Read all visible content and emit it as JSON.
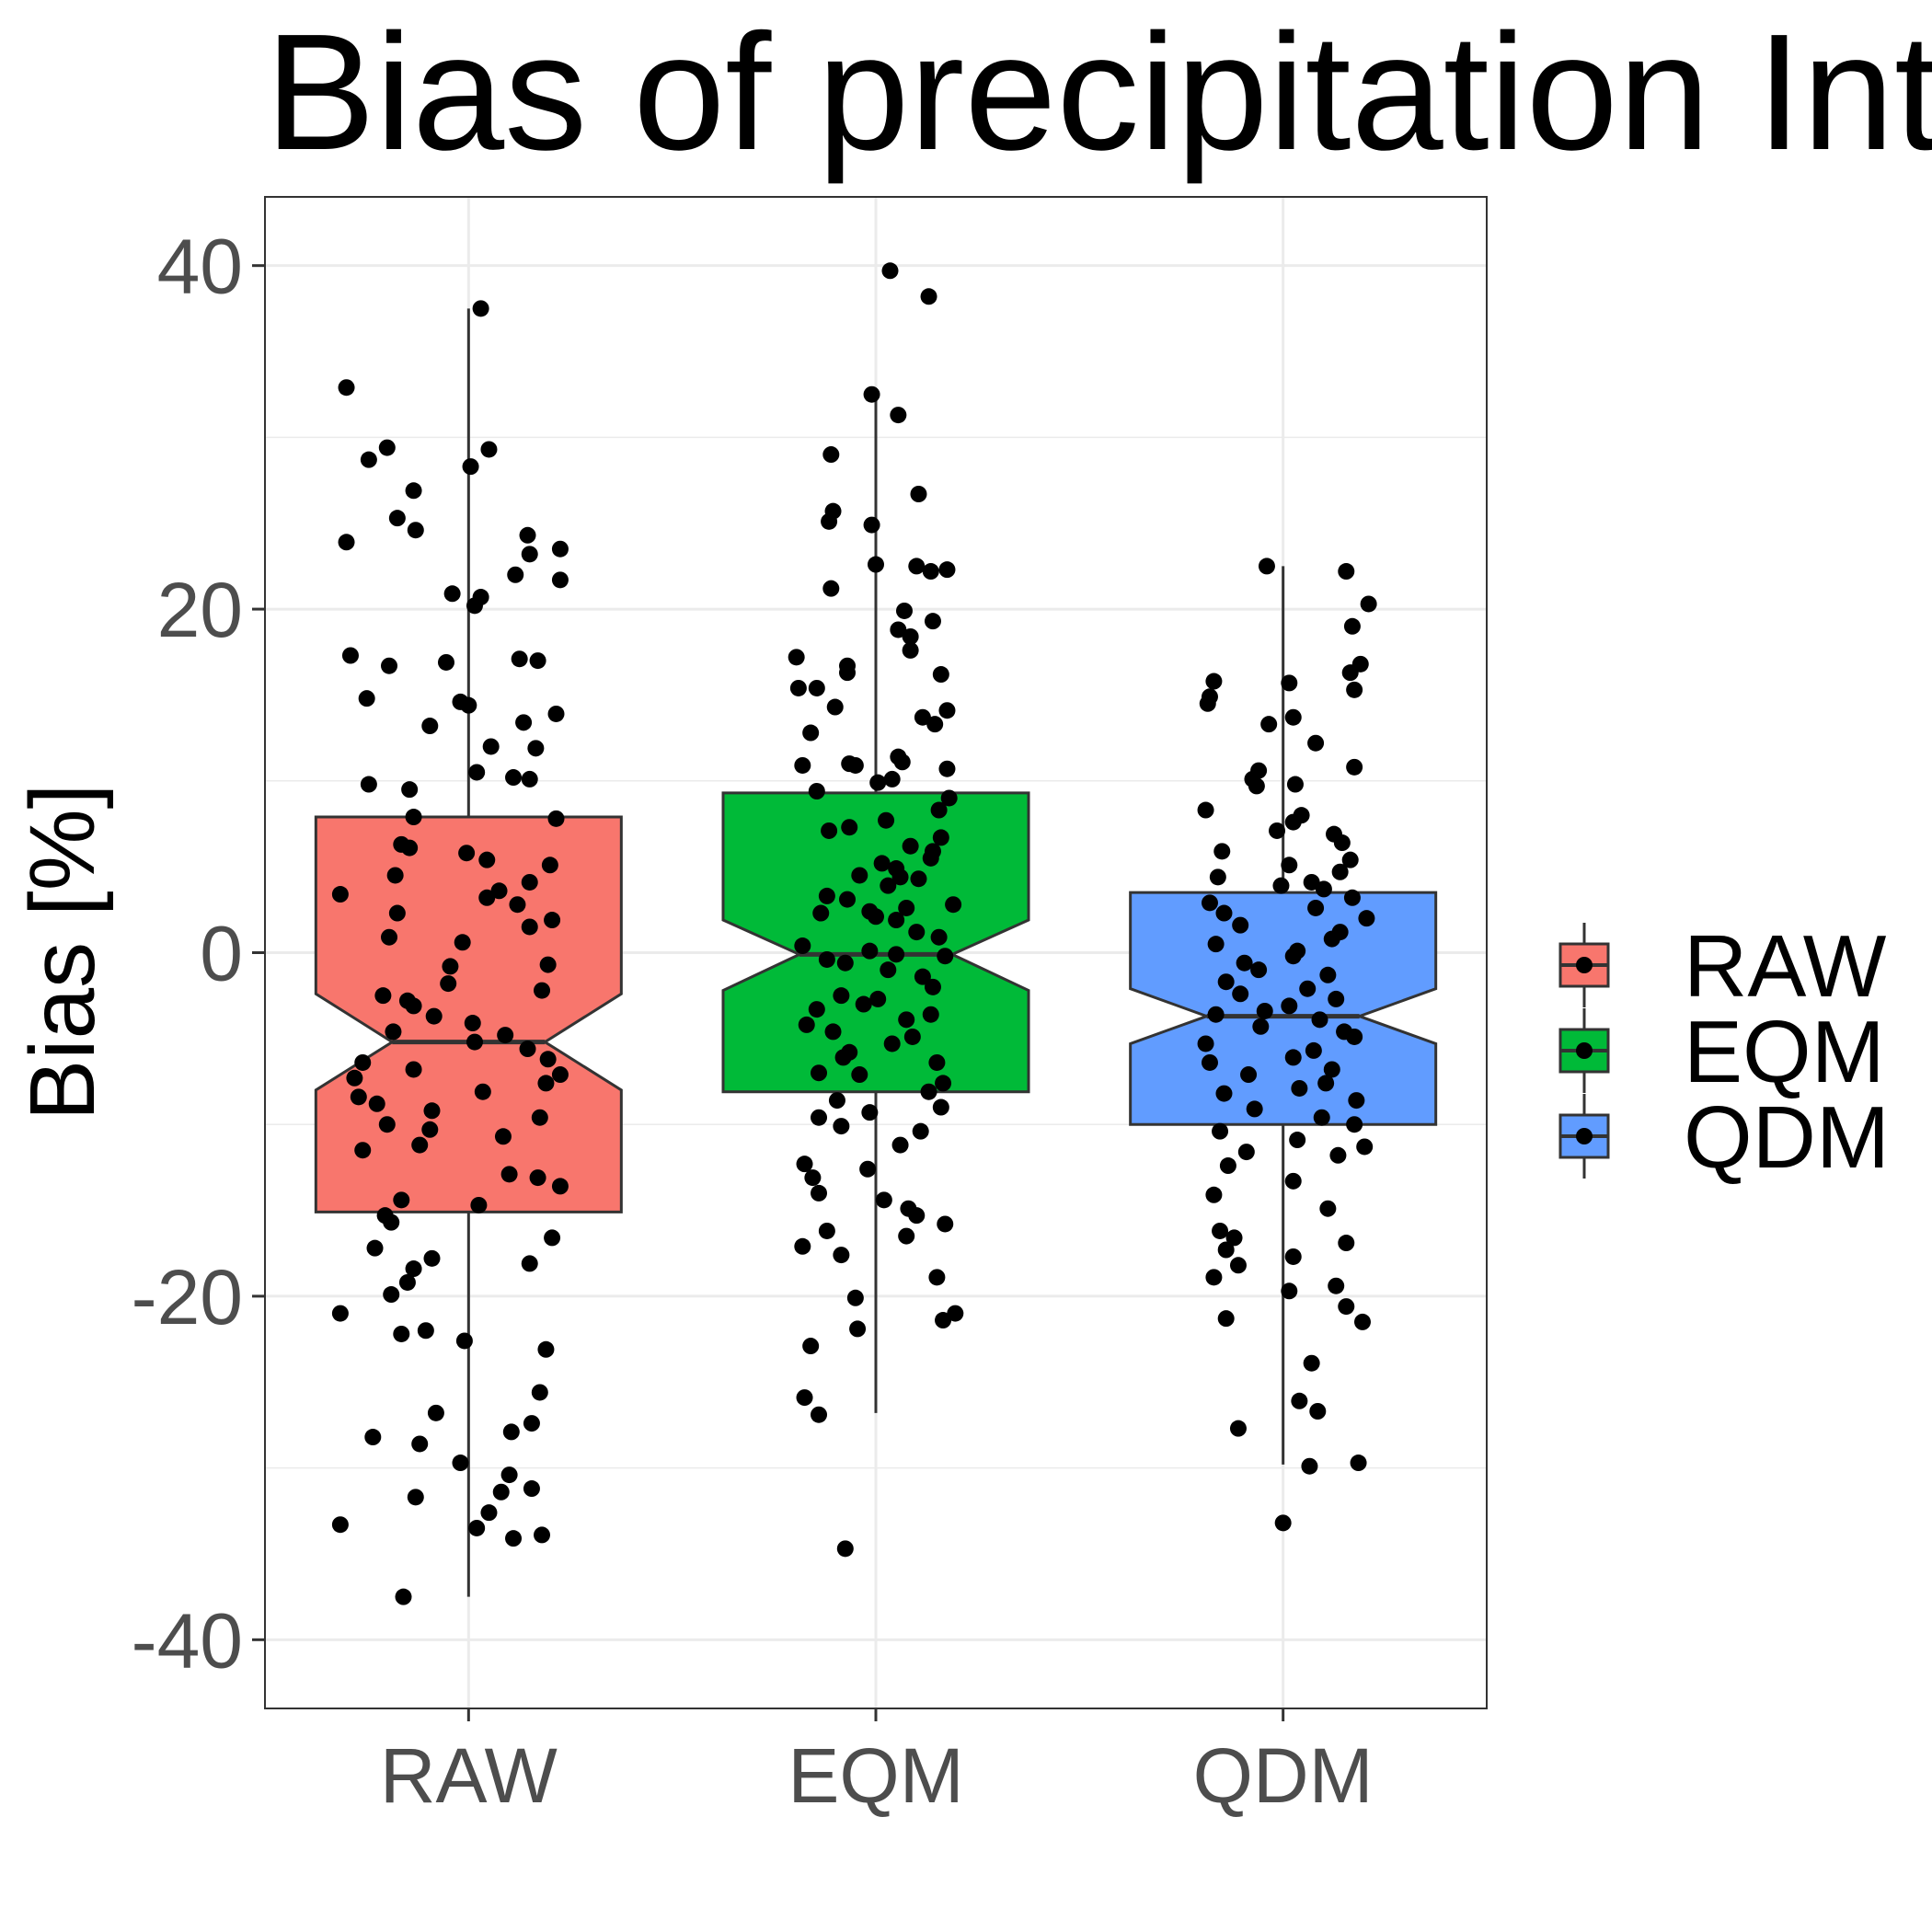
{
  "chart_data": {
    "type": "boxplot",
    "title": "Bias of precipitation Inte",
    "xlabel": "",
    "ylabel": "Bias [%]",
    "ylim": [
      -44,
      44
    ],
    "y_ticks": [
      -40,
      -20,
      0,
      20,
      40
    ],
    "y_tick_labels": [
      "-40",
      "-20",
      "0",
      "20",
      "40"
    ],
    "grid": true,
    "notched": true,
    "jitter_points": true,
    "legend": {
      "position": "right",
      "title": ""
    },
    "categories": [
      "RAW",
      "EQM",
      "QDM"
    ],
    "series": [
      {
        "name": "RAW",
        "color": "#F8766D",
        "whisker_low": -37.5,
        "q1": -15.1,
        "notch_low": -8.0,
        "median": -5.2,
        "notch_high": -2.4,
        "q3": 7.9,
        "whisker_high": 37.5,
        "points": [
          37.5,
          32.9,
          29.4,
          29.3,
          28.7,
          28.3,
          26.9,
          25.3,
          24.6,
          24.3,
          23.9,
          23.5,
          23.2,
          22.0,
          21.7,
          20.7,
          20.9,
          20.2,
          17.3,
          17.1,
          17.0,
          16.7,
          16.9,
          14.8,
          14.6,
          14.4,
          13.9,
          13.4,
          13.2,
          12.0,
          11.9,
          10.5,
          10.2,
          10.1,
          9.8,
          9.5,
          7.9,
          7.8,
          6.3,
          6.1,
          5.8,
          5.4,
          5.1,
          4.5,
          4.1,
          3.6,
          3.2,
          3.4,
          2.8,
          2.3,
          1.9,
          1.5,
          0.9,
          0.6,
          -0.8,
          -0.7,
          -1.8,
          -2.2,
          -2.5,
          -2.8,
          -3.1,
          -3.7,
          -4.1,
          -4.6,
          -4.8,
          -5.2,
          -5.6,
          -6.2,
          -6.4,
          -6.8,
          -7.1,
          -7.3,
          -7.6,
          -8.1,
          -8.4,
          -8.8,
          -9.2,
          -9.6,
          -10.0,
          -10.3,
          -10.7,
          -11.2,
          -11.5,
          -12.9,
          -13.1,
          -13.6,
          -14.4,
          -14.7,
          -15.3,
          -15.7,
          -16.6,
          -17.2,
          -17.8,
          -18.1,
          -18.4,
          -19.2,
          -19.9,
          -21.0,
          -22.0,
          -22.2,
          -22.6,
          -23.1,
          -25.6,
          -26.8,
          -27.4,
          -27.9,
          -28.2,
          -28.6,
          -29.7,
          -30.4,
          -31.2,
          -31.4,
          -31.7,
          -32.6,
          -33.3,
          -33.5,
          -33.9,
          -34.1,
          -37.5
        ],
        "jitter": [
          0.06,
          -0.6,
          -0.4,
          0.1,
          -0.49,
          0.01,
          -0.27,
          -0.35,
          -0.26,
          0.29,
          -0.6,
          0.45,
          0.3,
          0.23,
          0.45,
          0.06,
          -0.08,
          0.03,
          -0.58,
          0.25,
          0.34,
          -0.39,
          -0.11,
          -0.5,
          -0.04,
          0.0,
          0.43,
          0.27,
          -0.19,
          0.11,
          0.33,
          0.04,
          0.22,
          0.3,
          -0.49,
          -0.29,
          -0.27,
          0.43,
          -0.33,
          -0.29,
          -0.01,
          0.09,
          0.4,
          -0.36,
          0.3,
          0.15,
          0.09,
          -0.63,
          0.24,
          -0.35,
          0.41,
          0.3,
          -0.39,
          -0.03,
          -0.09,
          0.39,
          -0.1,
          0.36,
          -0.42,
          -0.3,
          -0.27,
          -0.17,
          0.02,
          -0.37,
          0.18,
          0.03,
          0.29,
          0.39,
          -0.52,
          -0.27,
          0.45,
          -0.56,
          0.38,
          0.07,
          -0.54,
          -0.45,
          -0.18,
          0.35,
          -0.4,
          -0.19,
          0.17,
          -0.24,
          -0.52,
          0.2,
          0.34,
          0.45,
          -0.33,
          0.05,
          -0.41,
          -0.38,
          0.41,
          -0.46,
          -0.18,
          0.3,
          -0.27,
          -0.3,
          -0.38,
          -0.63,
          -0.21,
          -0.33,
          -0.02,
          0.38,
          0.35,
          -0.16,
          0.31,
          0.21,
          -0.47,
          -0.24,
          -0.04,
          0.2,
          0.31,
          0.16,
          -0.26,
          0.1,
          -0.63,
          0.04,
          0.36,
          0.22,
          -0.32
        ]
      },
      {
        "name": "EQM",
        "color": "#00BA38",
        "whisker_low": -26.8,
        "q1": -8.1,
        "notch_low": -2.2,
        "median": -0.1,
        "notch_high": 1.9,
        "q3": 9.3,
        "whisker_high": 32.3,
        "points": [
          39.7,
          38.2,
          32.5,
          31.3,
          29.0,
          26.7,
          25.7,
          25.1,
          24.9,
          22.6,
          22.5,
          22.3,
          22.2,
          21.2,
          19.9,
          19.3,
          18.8,
          18.4,
          17.6,
          17.2,
          16.7,
          16.2,
          16.3,
          15.4,
          15.4,
          14.3,
          14.1,
          13.7,
          13.3,
          12.8,
          11.4,
          11.1,
          11.0,
          10.9,
          10.9,
          10.7,
          10.1,
          9.9,
          9.4,
          9.0,
          8.3,
          7.7,
          7.3,
          7.1,
          6.7,
          6.2,
          5.9,
          5.5,
          5.2,
          4.9,
          4.5,
          4.4,
          4.3,
          3.9,
          3.3,
          3.1,
          2.8,
          2.6,
          2.4,
          2.3,
          2.1,
          1.9,
          1.2,
          0.9,
          0.4,
          0.1,
          -0.1,
          -0.2,
          -0.4,
          -0.6,
          -1.0,
          -1.4,
          -2.0,
          -2.5,
          -2.7,
          -3.0,
          -3.3,
          -3.6,
          -3.9,
          -4.2,
          -4.6,
          -4.9,
          -5.3,
          -5.8,
          -6.1,
          -6.4,
          -7.0,
          -7.1,
          -7.6,
          -8.1,
          -8.6,
          -9.0,
          -9.3,
          -9.6,
          -10.1,
          -10.4,
          -11.2,
          -12.3,
          -12.6,
          -13.1,
          -14.0,
          -14.4,
          -14.9,
          -15.3,
          -15.8,
          -16.2,
          -16.5,
          -17.1,
          -17.6,
          -18.9,
          -20.1,
          -21.0,
          -21.4,
          -21.9,
          -22.9,
          -25.9,
          -26.9,
          -34.7
        ],
        "jitter": [
          0.07,
          0.26,
          -0.02,
          0.11,
          -0.22,
          0.21,
          -0.21,
          -0.23,
          -0.02,
          0.0,
          0.2,
          0.35,
          0.27,
          -0.22,
          0.14,
          0.28,
          0.11,
          0.17,
          0.17,
          -0.39,
          -0.14,
          0.32,
          -0.14,
          -0.29,
          -0.38,
          -0.2,
          0.35,
          0.23,
          0.29,
          -0.32,
          0.11,
          0.13,
          -0.13,
          -0.36,
          -0.1,
          0.35,
          0.08,
          0.01,
          -0.29,
          0.36,
          0.31,
          0.05,
          -0.13,
          -0.23,
          0.32,
          0.17,
          0.28,
          0.27,
          0.03,
          0.1,
          -0.08,
          0.12,
          0.21,
          0.06,
          -0.24,
          -0.14,
          0.38,
          0.15,
          -0.03,
          -0.27,
          0.0,
          0.1,
          0.2,
          0.31,
          -0.36,
          -0.03,
          0.1,
          0.34,
          -0.24,
          -0.15,
          0.06,
          0.23,
          0.28,
          -0.17,
          0.01,
          -0.06,
          -0.29,
          0.27,
          0.15,
          -0.34,
          -0.21,
          0.18,
          0.08,
          -0.13,
          -0.16,
          0.3,
          -0.28,
          -0.08,
          0.33,
          0.26,
          -0.19,
          0.32,
          -0.03,
          -0.28,
          -0.17,
          0.22,
          0.12,
          -0.35,
          -0.04,
          -0.31,
          -0.28,
          0.04,
          0.16,
          0.2,
          0.34,
          -0.24,
          0.15,
          -0.36,
          -0.17,
          0.3,
          -0.1,
          0.39,
          0.33,
          -0.09,
          -0.32,
          -0.35,
          -0.28,
          -0.15
        ]
      },
      {
        "name": "QDM",
        "color": "#619CFF",
        "whisker_low": -29.8,
        "q1": -10.0,
        "notch_low": -5.3,
        "median": -3.7,
        "notch_high": -2.1,
        "q3": 3.5,
        "whisker_high": 22.5,
        "points": [
          22.5,
          22.2,
          20.3,
          19.0,
          16.8,
          16.3,
          15.8,
          15.7,
          15.3,
          14.9,
          14.5,
          13.7,
          13.3,
          12.2,
          10.8,
          10.6,
          10.1,
          9.8,
          9.7,
          8.3,
          8.0,
          7.6,
          7.1,
          6.9,
          6.4,
          5.9,
          5.4,
          5.1,
          4.7,
          4.4,
          4.1,
          3.9,
          3.7,
          3.2,
          2.9,
          2.6,
          2.3,
          2.0,
          1.6,
          1.2,
          0.8,
          0.5,
          0.1,
          -0.2,
          -0.6,
          -1.0,
          -1.3,
          -1.7,
          -2.1,
          -2.4,
          -2.7,
          -3.1,
          -3.4,
          -3.6,
          -3.9,
          -4.3,
          -4.6,
          -4.9,
          -5.3,
          -5.7,
          -6.1,
          -6.4,
          -6.8,
          -7.1,
          -7.6,
          -7.9,
          -8.2,
          -8.6,
          -9.1,
          -9.6,
          -10.0,
          -10.4,
          -10.9,
          -11.3,
          -11.6,
          -11.8,
          -12.4,
          -13.3,
          -14.1,
          -14.9,
          -16.2,
          -16.6,
          -16.9,
          -17.3,
          -17.7,
          -18.2,
          -18.9,
          -19.4,
          -19.7,
          -20.6,
          -21.3,
          -21.5,
          -23.9,
          -26.1,
          -26.7,
          -27.7,
          -29.7,
          -29.9,
          -33.2
        ],
        "jitter": [
          -0.08,
          0.31,
          0.42,
          0.34,
          0.38,
          0.33,
          -0.34,
          0.03,
          0.35,
          -0.36,
          -0.37,
          0.05,
          -0.07,
          0.16,
          0.35,
          -0.12,
          -0.15,
          0.06,
          -0.13,
          -0.38,
          0.09,
          0.05,
          -0.03,
          0.25,
          0.29,
          -0.3,
          0.33,
          0.03,
          0.28,
          -0.32,
          0.14,
          -0.01,
          0.2,
          0.34,
          -0.36,
          0.16,
          -0.29,
          0.41,
          -0.21,
          0.28,
          0.24,
          -0.33,
          0.07,
          0.05,
          -0.19,
          -0.12,
          0.22,
          -0.28,
          0.12,
          -0.21,
          0.26,
          0.03,
          -0.09,
          -0.33,
          0.18,
          -0.11,
          0.3,
          0.35,
          -0.38,
          0.15,
          0.05,
          -0.36,
          0.24,
          -0.17,
          0.21,
          0.08,
          -0.29,
          0.36,
          -0.14,
          0.19,
          0.35,
          -0.31,
          0.07,
          0.4,
          -0.18,
          0.27,
          -0.27,
          0.05,
          -0.34,
          0.22,
          -0.31,
          -0.24,
          0.31,
          -0.28,
          0.05,
          -0.22,
          -0.34,
          0.26,
          0.03,
          0.31,
          -0.28,
          0.39,
          0.14,
          0.08,
          0.17,
          -0.22,
          0.37,
          0.13,
          0.0
        ]
      }
    ]
  }
}
